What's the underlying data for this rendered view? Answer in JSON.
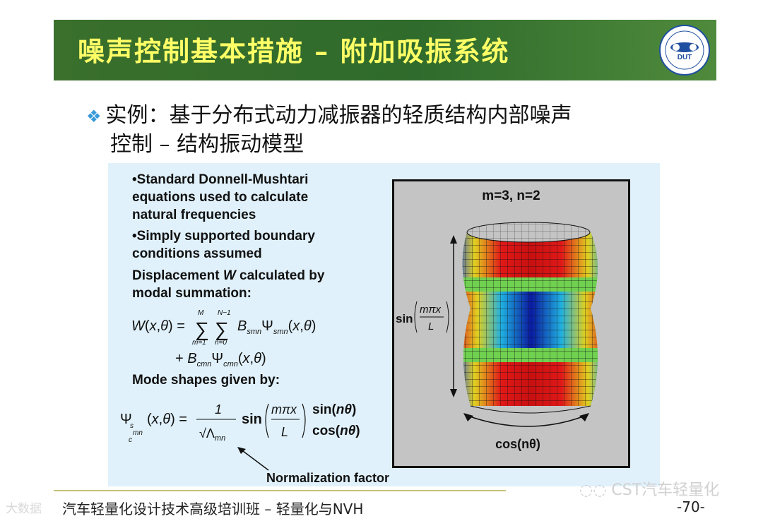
{
  "slide": {
    "title": "噪声控制基本措施 – 附加吸振系统",
    "logo_text": "DUT",
    "heading_line1": "实例：基于分布式动力减振器的轻质结构内部噪声",
    "heading_line2": "控制 – 结构振动模型",
    "footer": "汽车轻量化设计技术高级培训班 – 轻量化与NVH",
    "page_number": "-70-",
    "watermark_left": "大数据",
    "watermark_right": "CST汽车轻量化"
  },
  "panel": {
    "bullet1": [
      "•Standard Donnell-Mushtari",
      "equations used to calculate",
      "natural frequencies"
    ],
    "bullet2": [
      "•Simply supported boundary",
      "conditions assumed"
    ],
    "bullet3_a": "Displacement ",
    "bullet3_w": "W",
    "bullet3_b": " calculated by",
    "bullet3_c": "modal summation:",
    "mode_shapes": "Mode shapes given by:",
    "normalization": "Normalization factor"
  },
  "figure": {
    "caption": "m=3, n=2",
    "side_label_prefix": "sin",
    "bottom_label": "cos(nθ)"
  },
  "colors": {
    "banner": "#2f6b2c",
    "title_text": "#ffff66",
    "panel_bg": "#e0f1fb",
    "diamond": "#3a9ad9"
  }
}
